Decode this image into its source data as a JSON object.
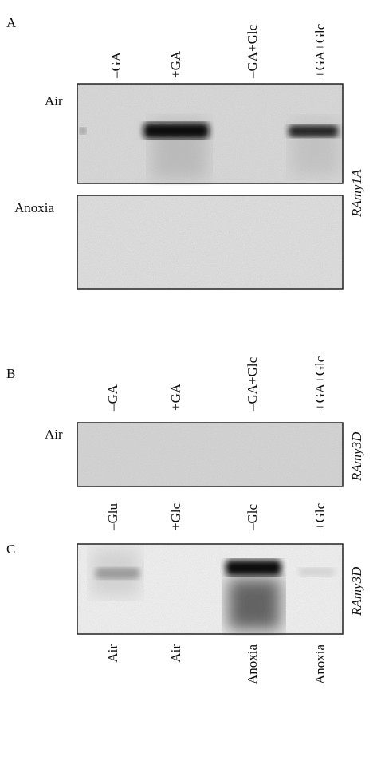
{
  "panels": [
    {
      "label": "A",
      "lanes": [
        "–GA",
        "+GA",
        "–GA+Glc",
        "+GA+Glc"
      ],
      "rows": [
        "Air",
        "Anoxia"
      ],
      "gene": "RAmy1A"
    },
    {
      "label": "B",
      "lanes": [
        "–GA",
        "+GA",
        "–GA+Glc",
        "+GA+Glc"
      ],
      "rows": [
        "Air"
      ],
      "gene": "RAmy3D"
    },
    {
      "label": "C",
      "lanes": [
        "–Glu",
        "+Glc",
        "–Glc",
        "+Glc"
      ],
      "conditions": [
        "Air",
        "Air",
        "Anoxia",
        "Anoxia"
      ],
      "gene": "RAmy3D"
    }
  ]
}
